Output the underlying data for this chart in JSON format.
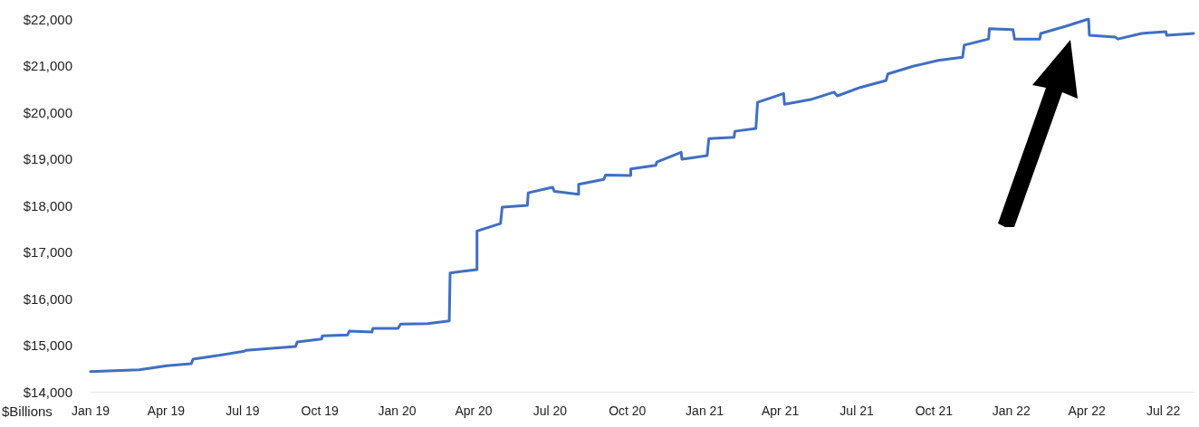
{
  "chart_data": {
    "type": "line",
    "ylabel": "$Billions",
    "xlim": [
      "2019-01-01",
      "2022-08-06"
    ],
    "xticks": [
      {
        "value": "2019-01-01",
        "label": "Jan 19"
      },
      {
        "value": "2019-04-01",
        "label": "Apr 19"
      },
      {
        "value": "2019-07-01",
        "label": "Jul 19"
      },
      {
        "value": "2019-10-01",
        "label": "Oct 19"
      },
      {
        "value": "2020-01-01",
        "label": "Jan 20"
      },
      {
        "value": "2020-04-01",
        "label": "Apr 20"
      },
      {
        "value": "2020-07-01",
        "label": "Jul 20"
      },
      {
        "value": "2020-10-01",
        "label": "Oct 20"
      },
      {
        "value": "2021-01-01",
        "label": "Jan 21"
      },
      {
        "value": "2021-04-01",
        "label": "Apr 21"
      },
      {
        "value": "2021-07-01",
        "label": "Jul 21"
      },
      {
        "value": "2021-10-01",
        "label": "Oct 21"
      },
      {
        "value": "2022-01-01",
        "label": "Jan 22"
      },
      {
        "value": "2022-04-01",
        "label": "Apr 22"
      },
      {
        "value": "2022-07-01",
        "label": "Jul 22"
      }
    ],
    "ylim": [
      14000,
      22000
    ],
    "yticks": [
      {
        "value": 14000,
        "label": "$14,000"
      },
      {
        "value": 15000,
        "label": "$15,000"
      },
      {
        "value": 16000,
        "label": "$16,000"
      },
      {
        "value": 17000,
        "label": "$17,000"
      },
      {
        "value": 18000,
        "label": "$18,000"
      },
      {
        "value": 19000,
        "label": "$19,000"
      },
      {
        "value": 20000,
        "label": "$20,000"
      },
      {
        "value": 21000,
        "label": "$21,000"
      },
      {
        "value": 22000,
        "label": "$22,000"
      }
    ],
    "grid": false,
    "marker": "none",
    "line_style": "solid",
    "series": [
      {
        "color": "#3f6fc4",
        "x": [
          "2019-01-01",
          "2019-02-28",
          "2019-04-02",
          "2019-05-01",
          "2019-05-03",
          "2019-06-03",
          "2019-07-03",
          "2019-07-05",
          "2019-09-02",
          "2019-09-04",
          "2019-10-03",
          "2019-10-04",
          "2019-11-03",
          "2019-11-05",
          "2019-12-02",
          "2019-12-03",
          "2020-01-02",
          "2020-01-05",
          "2020-02-06",
          "2020-03-03",
          "2020-03-04",
          "2020-04-05",
          "2020-04-05",
          "2020-05-03",
          "2020-05-05",
          "2020-06-04",
          "2020-06-05",
          "2020-07-04",
          "2020-07-06",
          "2020-08-04",
          "2020-08-04",
          "2020-09-03",
          "2020-09-05",
          "2020-10-05",
          "2020-10-05",
          "2020-11-04",
          "2020-11-05",
          "2020-12-04",
          "2020-12-05",
          "2021-01-04",
          "2021-01-06",
          "2021-02-05",
          "2021-02-06",
          "2021-03-03",
          "2021-03-05",
          "2021-04-05",
          "2021-04-06",
          "2021-04-18",
          "2021-05-07",
          "2021-06-04",
          "2021-06-08",
          "2021-07-05",
          "2021-08-05",
          "2021-08-07",
          "2021-09-07",
          "2021-10-06",
          "2021-11-04",
          "2021-11-06",
          "2021-12-05",
          "2021-12-06",
          "2022-01-03",
          "2022-01-05",
          "2022-02-04",
          "2022-02-05",
          "2022-03-06",
          "2022-04-03",
          "2022-04-04",
          "2022-05-05",
          "2022-05-08",
          "2022-06-05",
          "2022-07-04",
          "2022-07-05",
          "2022-08-06"
        ],
        "values": [
          14430,
          14470,
          14560,
          14600,
          14700,
          14780,
          14870,
          14890,
          14970,
          15070,
          15130,
          15200,
          15220,
          15300,
          15280,
          15360,
          15360,
          15450,
          15460,
          15520,
          16550,
          16620,
          17450,
          17610,
          17960,
          18000,
          18270,
          18390,
          18300,
          18240,
          18450,
          18560,
          18650,
          18640,
          18780,
          18860,
          18930,
          19140,
          18990,
          19070,
          19430,
          19460,
          19590,
          19650,
          20210,
          20400,
          20170,
          20210,
          20270,
          20430,
          20350,
          20530,
          20680,
          20820,
          20990,
          21110,
          21180,
          21440,
          21570,
          21790,
          21770,
          21570,
          21570,
          21690,
          21840,
          22000,
          21650,
          21610,
          21570,
          21690,
          21730,
          21650,
          21690
        ]
      }
    ]
  }
}
